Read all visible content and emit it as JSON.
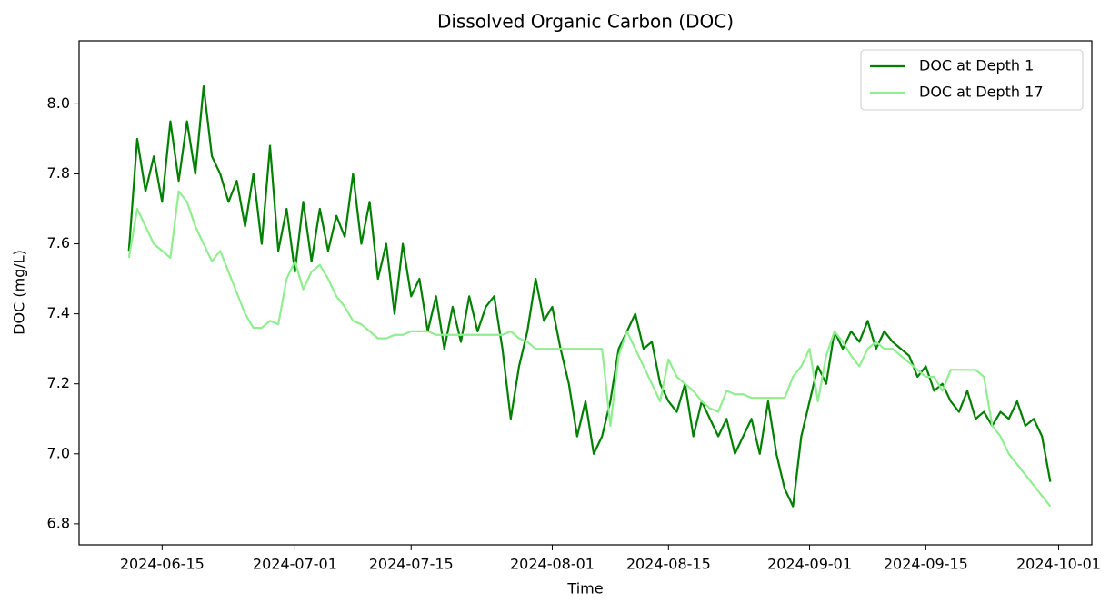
{
  "chart_data": {
    "type": "line",
    "title": "Dissolved Organic Carbon (DOC)",
    "xlabel": "Time",
    "ylabel": "DOC (mg/L)",
    "legend": "upper right",
    "xlim": [
      "2024-06-05",
      "2024-10-05"
    ],
    "xticks": [
      "2024-06-15",
      "2024-07-01",
      "2024-07-15",
      "2024-08-01",
      "2024-08-15",
      "2024-09-01",
      "2024-09-15",
      "2024-10-01"
    ],
    "ylim": [
      6.74,
      8.18
    ],
    "yticks": [
      6.8,
      {
        "value": 7.0,
        "label": "7.0"
      },
      7.2,
      7.4,
      7.6,
      7.8,
      {
        "value": 8.0,
        "label": "8.0"
      }
    ],
    "x": [
      "2024-06-11",
      "2024-06-12",
      "2024-06-13",
      "2024-06-14",
      "2024-06-15",
      "2024-06-16",
      "2024-06-17",
      "2024-06-18",
      "2024-06-19",
      "2024-06-20",
      "2024-06-21",
      "2024-06-22",
      "2024-06-23",
      "2024-06-24",
      "2024-06-25",
      "2024-06-26",
      "2024-06-27",
      "2024-06-28",
      "2024-06-29",
      "2024-06-30",
      "2024-07-01",
      "2024-07-02",
      "2024-07-03",
      "2024-07-04",
      "2024-07-05",
      "2024-07-06",
      "2024-07-07",
      "2024-07-08",
      "2024-07-09",
      "2024-07-10",
      "2024-07-11",
      "2024-07-12",
      "2024-07-13",
      "2024-07-14",
      "2024-07-15",
      "2024-07-16",
      "2024-07-17",
      "2024-07-18",
      "2024-07-19",
      "2024-07-20",
      "2024-07-21",
      "2024-07-22",
      "2024-07-23",
      "2024-07-24",
      "2024-07-25",
      "2024-07-26",
      "2024-07-27",
      "2024-07-28",
      "2024-07-29",
      "2024-07-30",
      "2024-07-31",
      "2024-08-01",
      "2024-08-02",
      "2024-08-03",
      "2024-08-04",
      "2024-08-05",
      "2024-08-06",
      "2024-08-07",
      "2024-08-08",
      "2024-08-09",
      "2024-08-10",
      "2024-08-11",
      "2024-08-12",
      "2024-08-13",
      "2024-08-14",
      "2024-08-15",
      "2024-08-16",
      "2024-08-17",
      "2024-08-18",
      "2024-08-19",
      "2024-08-20",
      "2024-08-21",
      "2024-08-22",
      "2024-08-23",
      "2024-08-24",
      "2024-08-25",
      "2024-08-26",
      "2024-08-27",
      "2024-08-28",
      "2024-08-29",
      "2024-08-30",
      "2024-08-31",
      "2024-09-01",
      "2024-09-02",
      "2024-09-03",
      "2024-09-04",
      "2024-09-05",
      "2024-09-06",
      "2024-09-07",
      "2024-09-08",
      "2024-09-09",
      "2024-09-10",
      "2024-09-11",
      "2024-09-12",
      "2024-09-13",
      "2024-09-14",
      "2024-09-15",
      "2024-09-16",
      "2024-09-17",
      "2024-09-18",
      "2024-09-19",
      "2024-09-20",
      "2024-09-21",
      "2024-09-22",
      "2024-09-23",
      "2024-09-24",
      "2024-09-25",
      "2024-09-26",
      "2024-09-27",
      "2024-09-28",
      "2024-09-29",
      "2024-09-30"
    ],
    "series": [
      {
        "name": "DOC at Depth 1",
        "color": "#008000",
        "values": [
          7.58,
          7.9,
          7.75,
          7.85,
          7.72,
          7.95,
          7.78,
          7.95,
          7.8,
          8.05,
          7.85,
          7.8,
          7.72,
          7.78,
          7.65,
          7.8,
          7.6,
          7.88,
          7.58,
          7.7,
          7.52,
          7.72,
          7.55,
          7.7,
          7.58,
          7.68,
          7.62,
          7.8,
          7.6,
          7.72,
          7.5,
          7.6,
          7.4,
          7.6,
          7.45,
          7.5,
          7.35,
          7.45,
          7.3,
          7.42,
          7.32,
          7.45,
          7.35,
          7.42,
          7.45,
          7.3,
          7.1,
          7.25,
          7.35,
          7.5,
          7.38,
          7.42,
          7.3,
          7.2,
          7.05,
          7.15,
          7.0,
          7.05,
          7.15,
          7.3,
          7.35,
          7.4,
          7.3,
          7.32,
          7.2,
          7.15,
          7.12,
          7.2,
          7.05,
          7.15,
          7.1,
          7.05,
          7.1,
          7.0,
          7.05,
          7.1,
          7.0,
          7.15,
          7.0,
          6.9,
          6.85,
          7.05,
          7.15,
          7.25,
          7.2,
          7.35,
          7.3,
          7.35,
          7.32,
          7.38,
          7.3,
          7.35,
          7.32,
          7.3,
          7.28,
          7.22,
          7.25,
          7.18,
          7.2,
          7.15,
          7.12,
          7.18,
          7.1,
          7.12,
          7.08,
          7.12,
          7.1,
          7.15,
          7.08,
          7.1,
          7.05,
          6.92
        ]
      },
      {
        "name": "DOC at Depth 17",
        "color": "#90ee90",
        "values": [
          7.56,
          7.7,
          7.65,
          7.6,
          7.58,
          7.56,
          7.75,
          7.72,
          7.65,
          7.6,
          7.55,
          7.58,
          7.52,
          7.46,
          7.4,
          7.36,
          7.36,
          7.38,
          7.37,
          7.5,
          7.55,
          7.47,
          7.52,
          7.54,
          7.5,
          7.45,
          7.42,
          7.38,
          7.37,
          7.35,
          7.33,
          7.33,
          7.34,
          7.34,
          7.35,
          7.35,
          7.35,
          7.34,
          7.34,
          7.34,
          7.34,
          7.34,
          7.34,
          7.34,
          7.34,
          7.34,
          7.35,
          7.33,
          7.32,
          7.3,
          7.3,
          7.3,
          7.3,
          7.3,
          7.3,
          7.3,
          7.3,
          7.3,
          7.08,
          7.28,
          7.35,
          7.3,
          7.25,
          7.2,
          7.15,
          7.27,
          7.22,
          7.2,
          7.18,
          7.15,
          7.13,
          7.12,
          7.18,
          7.17,
          7.17,
          7.16,
          7.16,
          7.16,
          7.16,
          7.16,
          7.22,
          7.25,
          7.3,
          7.15,
          7.28,
          7.35,
          7.32,
          7.28,
          7.25,
          7.3,
          7.32,
          7.3,
          7.3,
          7.28,
          7.26,
          7.24,
          7.22,
          7.22,
          7.18,
          7.24,
          7.24,
          7.24,
          7.24,
          7.22,
          7.08,
          7.05,
          7.0,
          6.97,
          6.94,
          6.91,
          6.88,
          6.85
        ]
      }
    ]
  }
}
